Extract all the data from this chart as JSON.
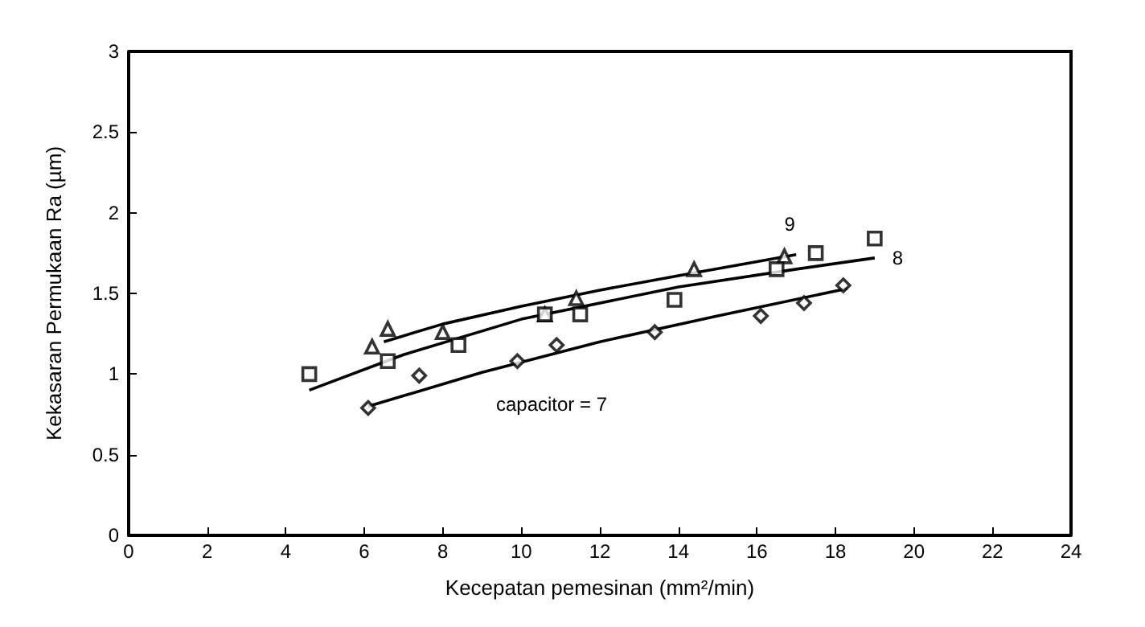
{
  "chart_data": {
    "type": "scatter",
    "xlabel": "Kecepatan pemesinan (mm²/min)",
    "ylabel": "Kekasaran Permukaan Ra (µm)",
    "xlim": [
      0,
      24
    ],
    "xticks": [
      0,
      2,
      4,
      6,
      8,
      10,
      12,
      14,
      16,
      18,
      20,
      22,
      24
    ],
    "ylim": [
      0,
      3
    ],
    "yticks": [
      0,
      0.5,
      1,
      1.5,
      2,
      2.5,
      3
    ],
    "grid": false,
    "series": [
      {
        "color": "#000000",
        "marker": "triangle",
        "x": [
          6.2,
          6.6,
          8.0,
          10.6,
          11.4,
          14.4,
          16.7
        ],
        "values": [
          1.17,
          1.28,
          1.26,
          1.37,
          1.47,
          1.65,
          1.73
        ]
      },
      {
        "color": "#000000",
        "marker": "square",
        "x": [
          4.6,
          6.6,
          8.4,
          10.6,
          11.5,
          13.9,
          16.5,
          17.5,
          19.0
        ],
        "values": [
          1.0,
          1.08,
          1.18,
          1.37,
          1.37,
          1.46,
          1.65,
          1.75,
          1.84
        ]
      },
      {
        "color": "#000000",
        "marker": "diamond",
        "x": [
          6.1,
          7.4,
          9.9,
          10.9,
          13.4,
          16.1,
          17.2,
          18.2
        ],
        "values": [
          0.79,
          0.99,
          1.08,
          1.18,
          1.26,
          1.36,
          1.44,
          1.55
        ]
      },
      {
        "type": "line",
        "name": "9",
        "color": "#000000",
        "marker": "none",
        "x": [
          6.5,
          8,
          10,
          12,
          14,
          17
        ],
        "values": [
          1.2,
          1.31,
          1.42,
          1.52,
          1.61,
          1.74
        ]
      },
      {
        "type": "line",
        "name": "8",
        "color": "#000000",
        "marker": "none",
        "x": [
          4.6,
          7,
          10,
          14,
          17,
          19
        ],
        "values": [
          0.9,
          1.12,
          1.34,
          1.54,
          1.65,
          1.72
        ]
      },
      {
        "type": "line",
        "name": "capacitor = 7",
        "color": "#000000",
        "marker": "none",
        "x": [
          6.1,
          9,
          12,
          15,
          18.3
        ],
        "values": [
          0.8,
          1.01,
          1.2,
          1.36,
          1.53
        ]
      }
    ]
  }
}
